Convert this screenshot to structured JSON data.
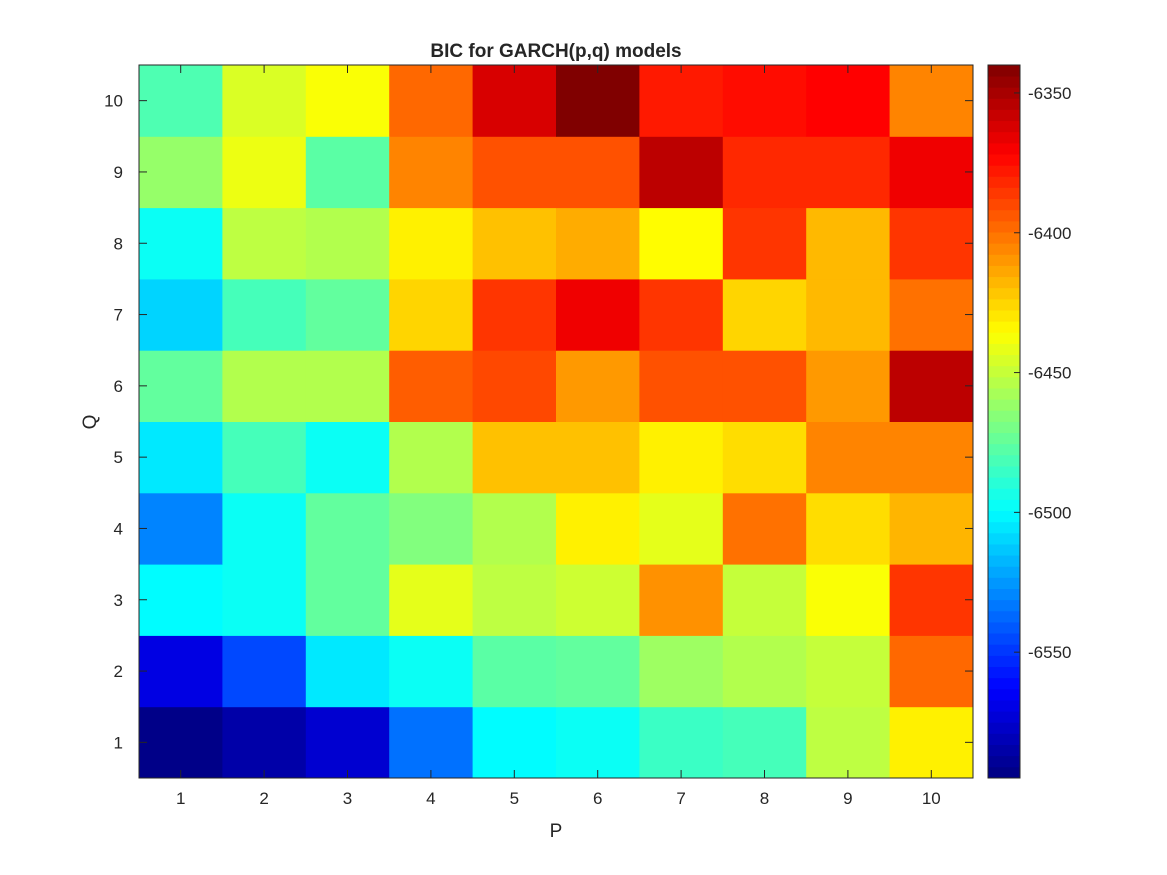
{
  "chart_data": {
    "type": "heatmap",
    "title": "BIC for GARCH(p,q) models",
    "xlabel": "P",
    "ylabel": "Q",
    "x": [
      1,
      2,
      3,
      4,
      5,
      6,
      7,
      8,
      9,
      10
    ],
    "y": [
      1,
      2,
      3,
      4,
      5,
      6,
      7,
      8,
      9,
      10
    ],
    "colormap": "jet",
    "clim": [
      -6595,
      -6340
    ],
    "colorbar": {
      "ticks": [
        -6350,
        -6400,
        -6450,
        -6500,
        -6550
      ],
      "tick_labels": [
        "-6350",
        "-6400",
        "-6450",
        "-6500",
        "-6550"
      ]
    },
    "values": [
      [
        -6593,
        -6585,
        -6575,
        -6535,
        -6500,
        -6497,
        -6485,
        -6482,
        -6452,
        -6432
      ],
      [
        -6570,
        -6545,
        -6505,
        -6497,
        -6477,
        -6475,
        -6460,
        -6455,
        -6450,
        -6398
      ],
      [
        -6500,
        -6497,
        -6475,
        -6442,
        -6452,
        -6448,
        -6408,
        -6450,
        -6437,
        -6385
      ],
      [
        -6530,
        -6497,
        -6475,
        -6467,
        -6455,
        -6432,
        -6442,
        -6400,
        -6427,
        -6417
      ],
      [
        -6505,
        -6482,
        -6497,
        -6455,
        -6420,
        -6420,
        -6432,
        -6427,
        -6405,
        -6405
      ],
      [
        -6475,
        -6455,
        -6455,
        -6395,
        -6390,
        -6410,
        -6392,
        -6392,
        -6410,
        -6355
      ],
      [
        -6510,
        -6482,
        -6475,
        -6425,
        -6385,
        -6368,
        -6385,
        -6425,
        -6418,
        -6400
      ],
      [
        -6497,
        -6452,
        -6455,
        -6432,
        -6420,
        -6415,
        -6435,
        -6385,
        -6418,
        -6385
      ],
      [
        -6462,
        -6440,
        -6477,
        -6405,
        -6392,
        -6392,
        -6355,
        -6382,
        -6382,
        -6368
      ],
      [
        -6480,
        -6445,
        -6437,
        -6398,
        -6362,
        -6340,
        -6378,
        -6375,
        -6372,
        -6405
      ]
    ]
  }
}
